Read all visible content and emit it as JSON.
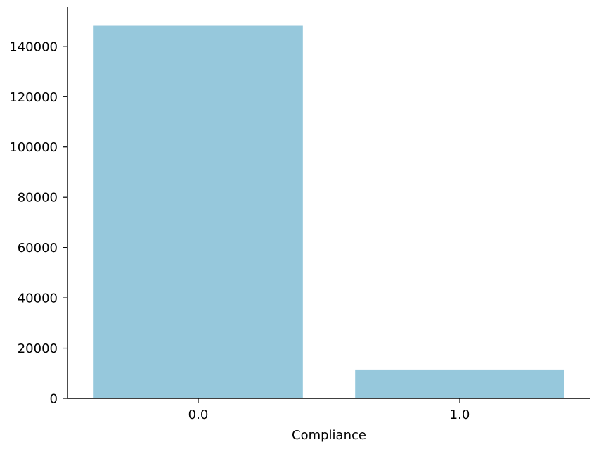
{
  "chart_data": {
    "type": "bar",
    "categories": [
      "0.0",
      "1.0"
    ],
    "values": [
      148200,
      11500
    ],
    "xlabel": "Compliance",
    "ylabel": "",
    "ylim": [
      0,
      155625
    ],
    "yticks": [
      0,
      20000,
      40000,
      60000,
      80000,
      100000,
      120000,
      140000
    ],
    "ytick_labels": [
      "0",
      "20000",
      "40000",
      "60000",
      "80000",
      "100000",
      "120000",
      "140000"
    ],
    "grid": false,
    "legend": "none",
    "bar_color": "#96c8dc",
    "axis_color": "#000000"
  }
}
